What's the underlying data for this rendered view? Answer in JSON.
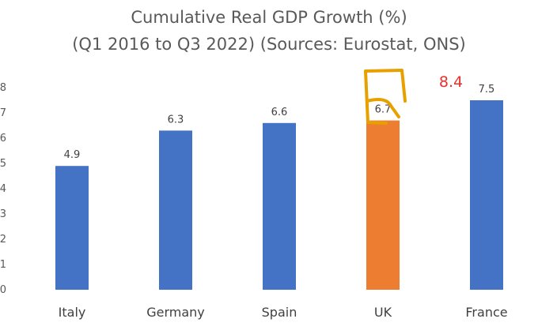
{
  "chart_data": {
    "type": "bar",
    "title": "Cumulative Real GDP Growth (%)",
    "subtitle": "(Q1 2016 to Q3 2022) (Sources: Eurostat, ONS)",
    "categories": [
      "Italy",
      "Germany",
      "Spain",
      "UK",
      "France"
    ],
    "values": [
      4.9,
      6.3,
      6.6,
      6.7,
      7.5
    ],
    "data_labels": [
      "4.9",
      "6.3",
      "6.6",
      "6.7",
      "7.5"
    ],
    "ylim": [
      0,
      8
    ],
    "yticks": [
      "0",
      "1",
      "2",
      "3",
      "4",
      "5",
      "6",
      "7",
      "8"
    ],
    "xlabel": "",
    "ylabel": "",
    "grid": false,
    "colors": {
      "bar": "#4472c4",
      "highlight": "#ed7d31",
      "annotation_stroke": "#e8a000",
      "annotation_text": "#e8312a"
    },
    "highlight_index": 3,
    "annotation": {
      "text": "8.4",
      "value": 8.4
    }
  }
}
